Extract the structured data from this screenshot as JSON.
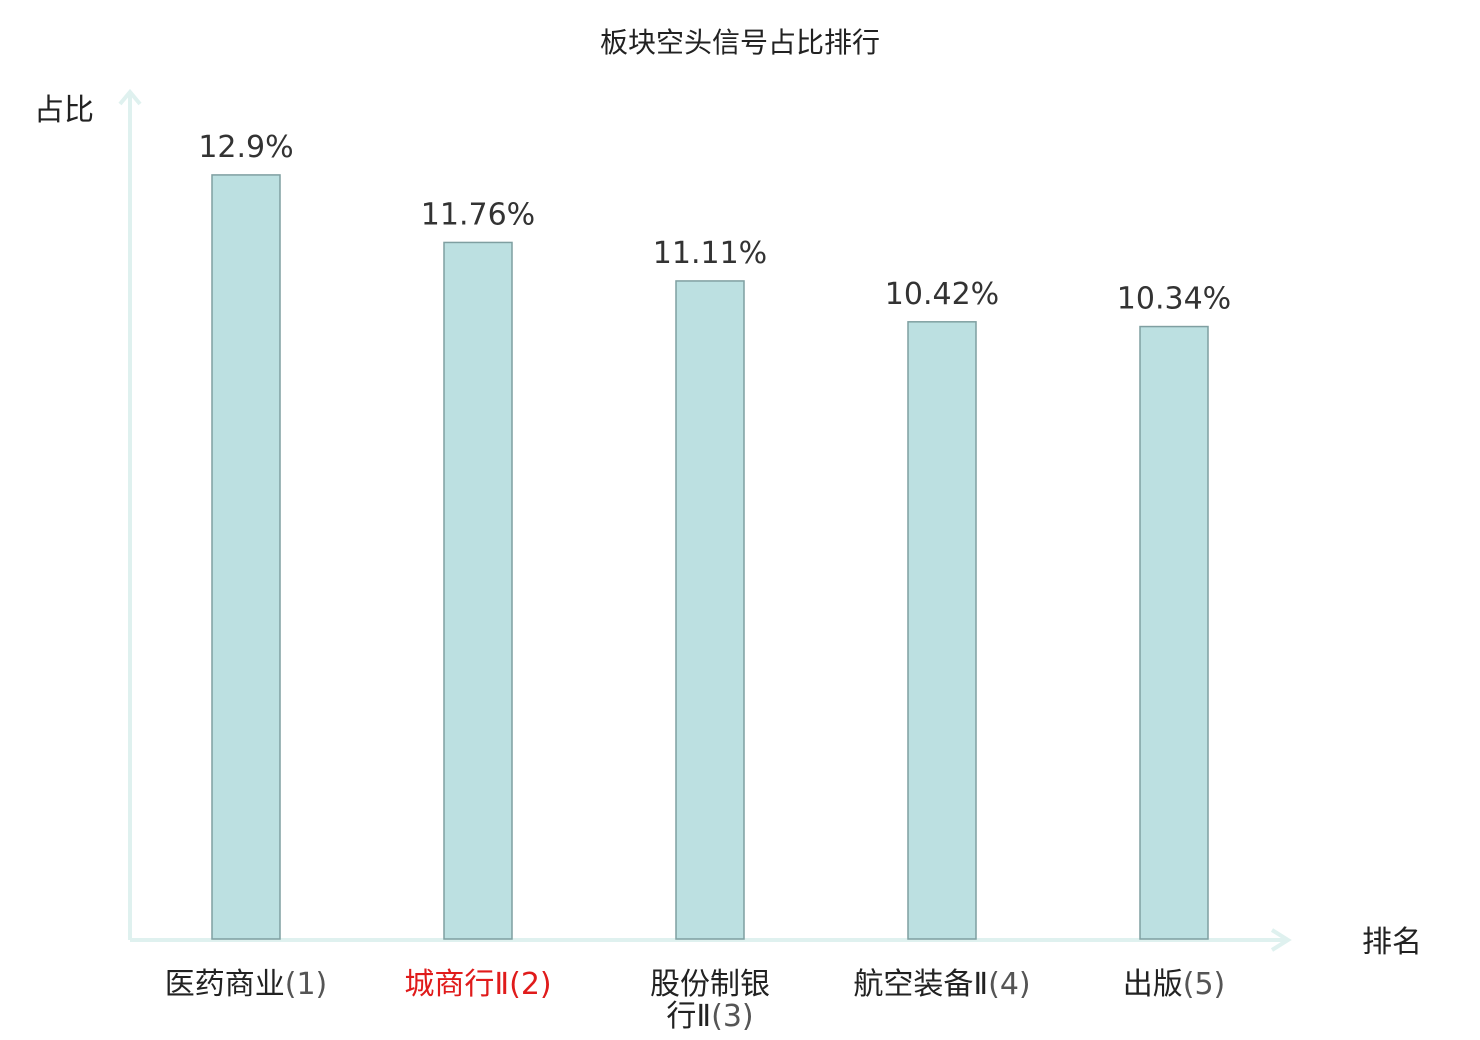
{
  "chart_data": {
    "type": "bar",
    "title": "板块空头信号占比排行",
    "ylabel": "占比",
    "xlabel": "排名",
    "categories": [
      {
        "name": "医药商业",
        "rank": "(1)",
        "highlight": false
      },
      {
        "name": "城商行Ⅱ",
        "rank": "(2)",
        "highlight": true
      },
      {
        "name": "股份制银行Ⅱ",
        "rank": "(3)",
        "highlight": false
      },
      {
        "name": "航空装备Ⅱ",
        "rank": "(4)",
        "highlight": false
      },
      {
        "name": "出版",
        "rank": "(5)",
        "highlight": false
      }
    ],
    "values": [
      12.9,
      11.76,
      11.11,
      10.42,
      10.34
    ],
    "value_labels": [
      "12.9%",
      "11.76%",
      "11.11%",
      "10.42%",
      "10.34%"
    ],
    "ylim": [
      0,
      14.3
    ],
    "grid": false,
    "colors": {
      "bar_fill": "#bce0e1",
      "bar_stroke": "#7f9fa1",
      "axis": "#dff1ef",
      "highlight_text": "#e01b1b"
    }
  }
}
